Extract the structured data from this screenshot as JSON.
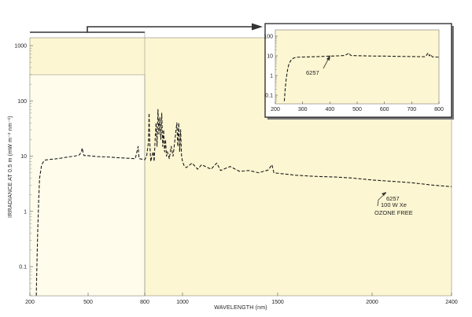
{
  "chart_data": [
    {
      "type": "line",
      "xlabel": "WAVELENGTH (nm)",
      "ylabel": "IRRADIANCE AT 0.5 m (mW m⁻² nm⁻¹)",
      "xlim": [
        200,
        2400
      ],
      "ylim": [
        0.03,
        1000
      ],
      "yscale": "log",
      "x_ticks": [
        "200",
        "500",
        "800",
        "1000",
        "1500",
        "2000",
        "2400"
      ],
      "y_ticks": [
        "0.1",
        "1",
        "10",
        "100",
        "1000"
      ],
      "annotation": [
        "6257",
        "100 W Xe",
        "OZONE FREE"
      ],
      "series": [
        {
          "name": "6257",
          "style": "dashed",
          "x": [
            233,
            236,
            240,
            245,
            250,
            260,
            270,
            280,
            300,
            330,
            360,
            400,
            430,
            455,
            465,
            470,
            475,
            480,
            490,
            500,
            550,
            600,
            650,
            700,
            750,
            765,
            770,
            780,
            790,
            800,
            810,
            820,
            823,
            826,
            829,
            832,
            838,
            845,
            850,
            855,
            860,
            865,
            870,
            875,
            880,
            885,
            890,
            895,
            900,
            905,
            910,
            915,
            920,
            930,
            940,
            950,
            960,
            970,
            975,
            980,
            985,
            990,
            995,
            1000,
            1010,
            1020,
            1050,
            1080,
            1100,
            1150,
            1180,
            1200,
            1250,
            1300,
            1350,
            1400,
            1450,
            1470,
            1480,
            1500,
            1550,
            1600,
            1700,
            1800,
            1900,
            2000,
            2050,
            2100,
            2200,
            2300,
            2400
          ],
          "y": [
            0.03,
            0.1,
            0.4,
            1.5,
            4.0,
            6.8,
            8.0,
            8.5,
            8.7,
            8.9,
            9.2,
            9.7,
            10.0,
            10.5,
            12.0,
            14.0,
            11.0,
            10.2,
            10.3,
            10.2,
            9.8,
            9.7,
            9.4,
            9.2,
            9.0,
            15.0,
            9.0,
            8.9,
            8.7,
            8.6,
            10.0,
            18.0,
            60.0,
            20.0,
            12.0,
            8.0,
            10.0,
            12.0,
            8.0,
            20.0,
            40.0,
            15.0,
            70.0,
            25.0,
            50.0,
            20.0,
            60.0,
            15.0,
            30.0,
            12.0,
            20.0,
            10.0,
            12.0,
            9.0,
            15.0,
            10.0,
            20.0,
            40.0,
            15.0,
            40.0,
            12.0,
            30.0,
            10.0,
            8.0,
            6.5,
            6.2,
            7.5,
            5.8,
            7.0,
            5.8,
            7.5,
            5.5,
            6.5,
            5.3,
            5.5,
            5.0,
            5.6,
            7.0,
            5.0,
            4.9,
            4.7,
            4.5,
            4.3,
            4.2,
            4.0,
            3.7,
            3.6,
            3.5,
            3.3,
            3.0,
            2.8
          ]
        }
      ]
    },
    {
      "type": "line",
      "inset": true,
      "xlim": [
        200,
        800
      ],
      "ylim": [
        0.05,
        150
      ],
      "yscale": "log",
      "x_ticks": [
        "200",
        "300",
        "400",
        "500",
        "600",
        "700",
        "800"
      ],
      "y_ticks": [
        "0.1",
        "1",
        "10",
        "100"
      ],
      "annotation": [
        "6257"
      ],
      "series": [
        {
          "name": "6257",
          "style": "dashed",
          "x": [
            233,
            236,
            240,
            245,
            250,
            260,
            270,
            280,
            300,
            330,
            360,
            400,
            430,
            455,
            465,
            470,
            475,
            480,
            490,
            500,
            550,
            600,
            650,
            700,
            750,
            755,
            760,
            765,
            770,
            775,
            780,
            790,
            800
          ],
          "y": [
            0.05,
            0.2,
            0.7,
            2.0,
            4.0,
            6.8,
            8.0,
            8.5,
            8.7,
            8.9,
            9.2,
            9.7,
            10.0,
            10.5,
            12.5,
            14.0,
            11.0,
            10.2,
            10.3,
            10.2,
            9.8,
            9.7,
            9.4,
            9.2,
            9.0,
            11.0,
            14.0,
            10.0,
            12.0,
            9.0,
            8.9,
            8.7,
            8.6
          ]
        }
      ]
    }
  ],
  "colors": {
    "panel": "#fdf6d2",
    "highlight": "#fffcec",
    "axes": "#555555",
    "curve": "#1a1a1a",
    "frame": "#333333"
  }
}
